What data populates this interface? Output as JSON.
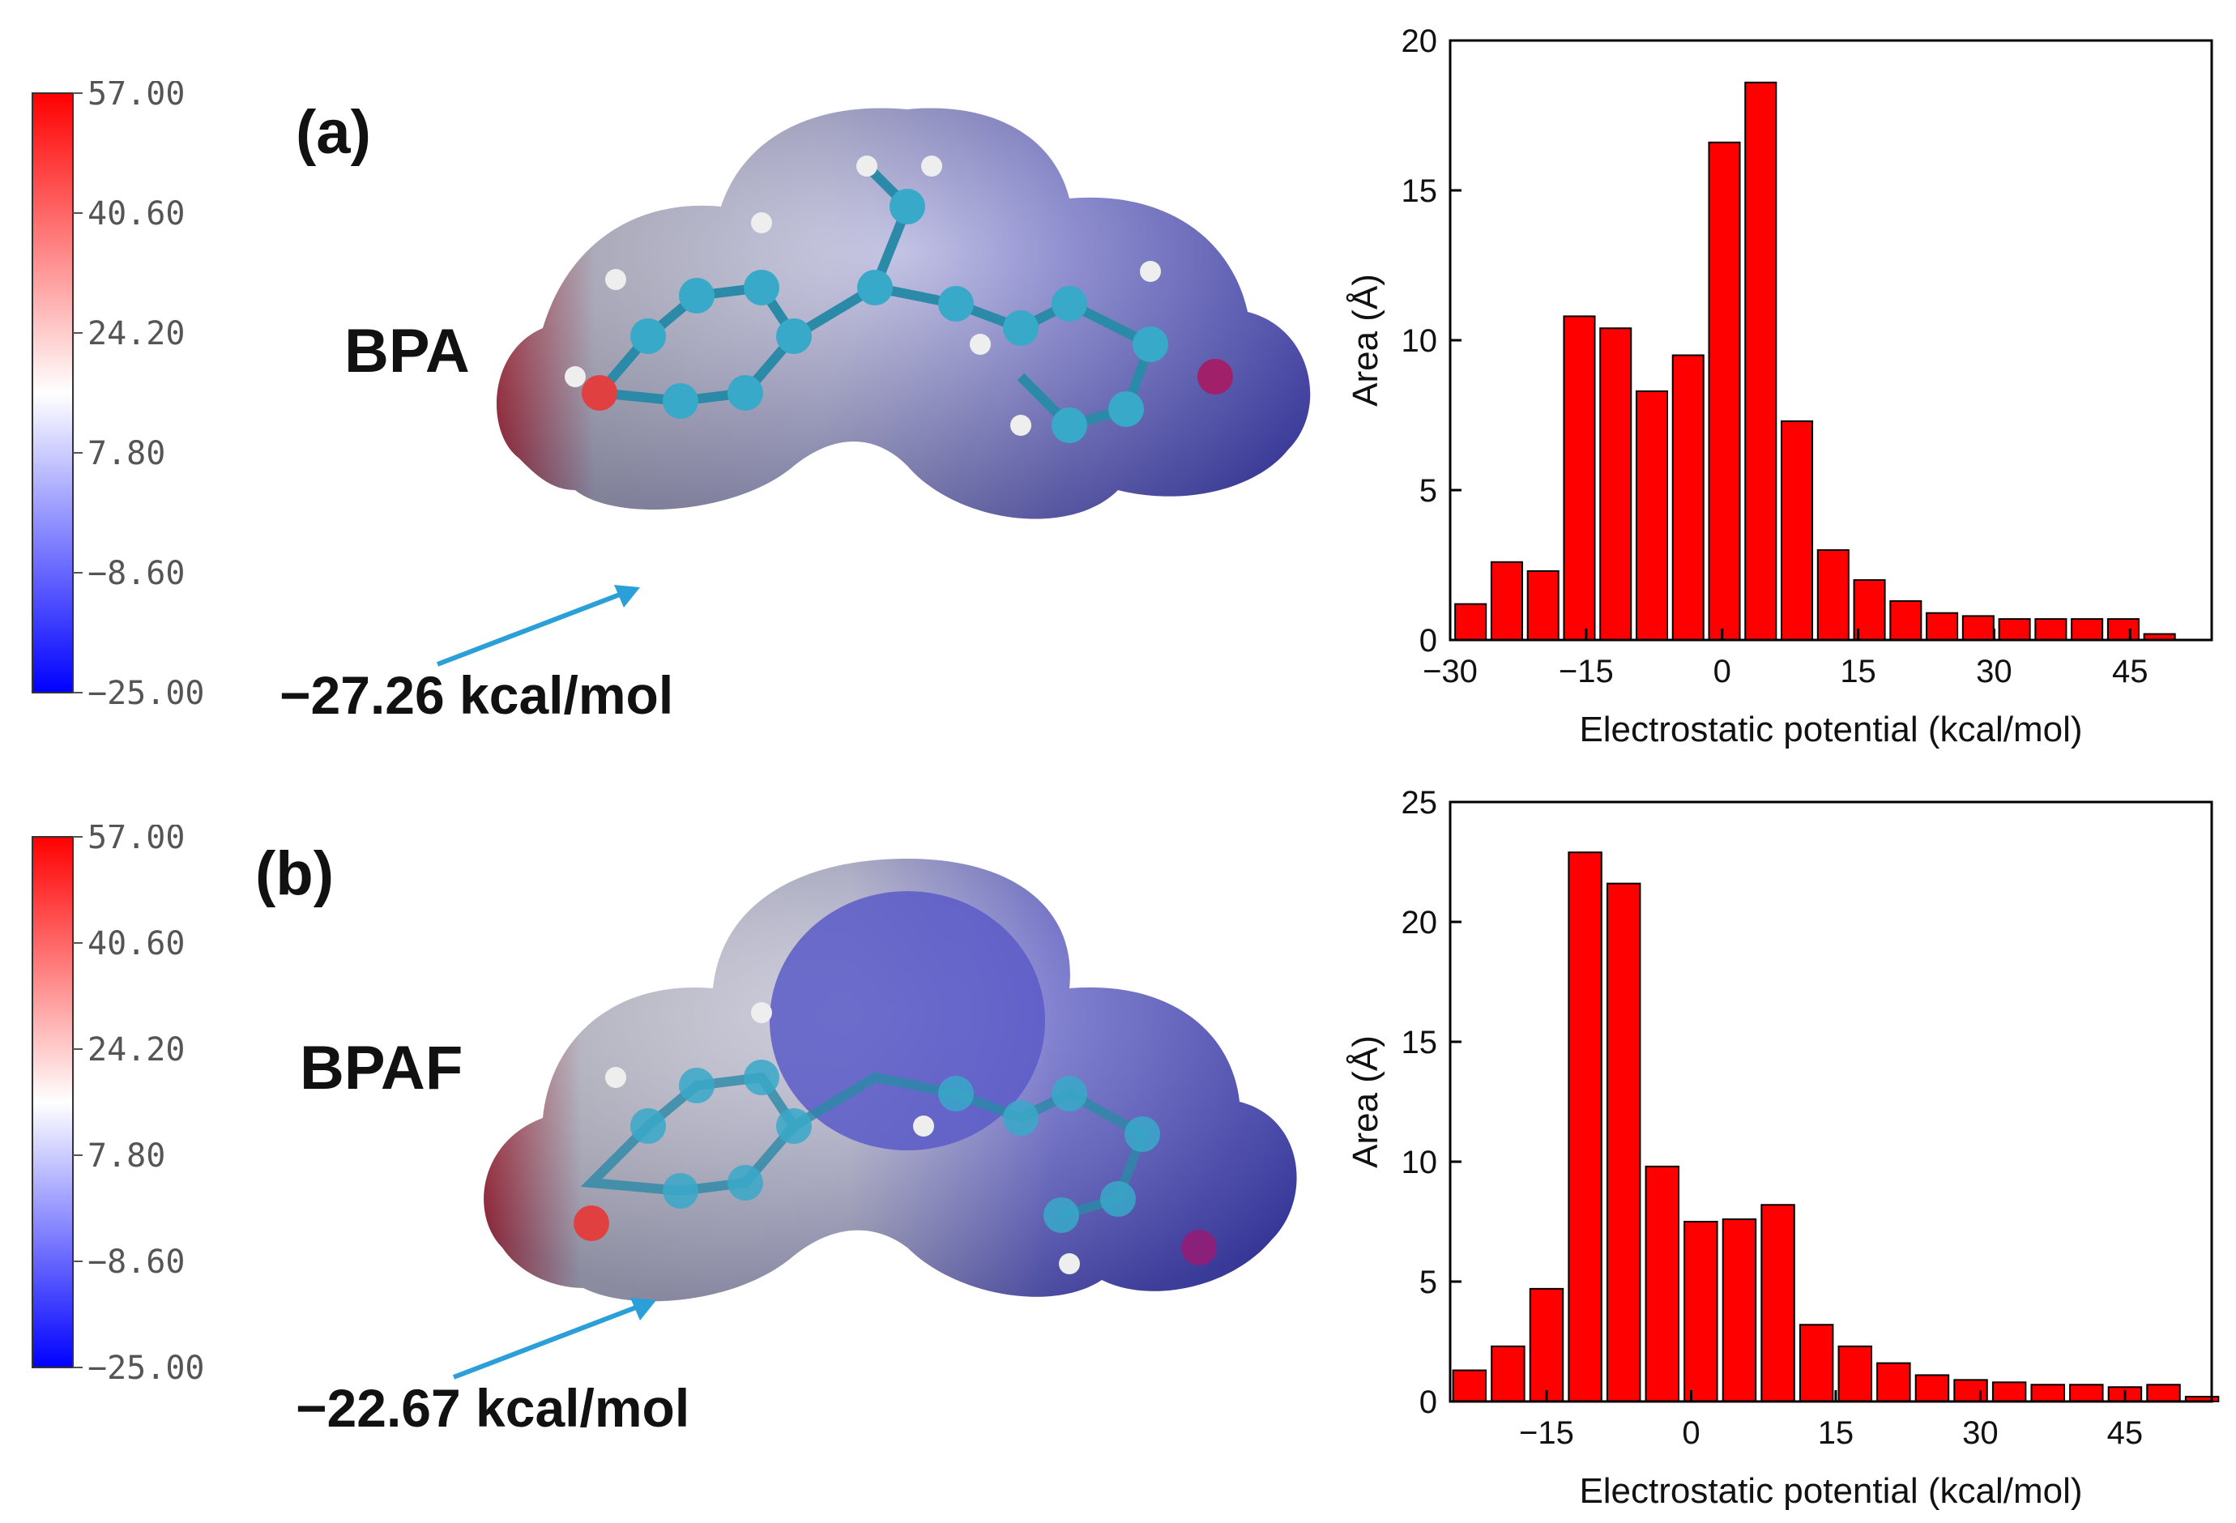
{
  "panels": [
    {
      "label": "(a)",
      "molecule": "BPA",
      "annotation": "−27.26 kcal/mol",
      "colorbar": {
        "ticks": [
          "57.00",
          "40.60",
          "24.20",
          "7.80",
          "−8.60",
          "−25.00"
        ],
        "colors": [
          "#ff0000",
          "#ffffff",
          "#0000ff"
        ]
      }
    },
    {
      "label": "(b)",
      "molecule": "BPAF",
      "annotation": "−22.67 kcal/mol",
      "colorbar": {
        "ticks": [
          "57.00",
          "40.60",
          "24.20",
          "7.80",
          "−8.60",
          "−25.00"
        ],
        "colors": [
          "#ff0000",
          "#ffffff",
          "#0000ff"
        ]
      }
    }
  ],
  "chart_data": [
    {
      "type": "bar",
      "xlabel": "Electrostatic potential (kcal/mol)",
      "ylabel": "Area (Å)",
      "xlim": [
        -30,
        54
      ],
      "ylim": [
        0,
        20
      ],
      "xticks": [
        -30,
        -15,
        0,
        15,
        30,
        45
      ],
      "yticks": [
        0,
        5,
        10,
        15,
        20
      ],
      "bar_width": 3.4,
      "bar_color": "#ff0000",
      "x": [
        -27.75,
        -23.75,
        -19.75,
        -15.75,
        -11.75,
        -7.75,
        -3.75,
        0.25,
        4.25,
        8.25,
        12.25,
        16.25,
        20.25,
        24.25,
        28.25,
        32.25,
        36.25,
        40.25,
        44.25,
        48.25,
        52.25
      ],
      "values": [
        1.2,
        2.6,
        2.3,
        10.8,
        10.4,
        8.3,
        9.5,
        16.6,
        18.6,
        7.3,
        3.0,
        2.0,
        1.3,
        0.9,
        0.8,
        0.7,
        0.7,
        0.7,
        0.7,
        0.2,
        0
      ]
    },
    {
      "type": "bar",
      "xlabel": "Electrostatic potential (kcal/mol)",
      "ylabel": "Area (Å)",
      "xlim": [
        -25,
        54
      ],
      "ylim": [
        0,
        25
      ],
      "xticks": [
        -15,
        0,
        15,
        30,
        45
      ],
      "yticks": [
        0,
        5,
        10,
        15,
        20,
        25
      ],
      "bar_width": 3.4,
      "bar_color": "#ff0000",
      "x": [
        -23,
        -19,
        -15,
        -11,
        -7,
        -3,
        1,
        5,
        9,
        13,
        17,
        21,
        25,
        29,
        33,
        37,
        41,
        45,
        49,
        53
      ],
      "values": [
        1.3,
        2.3,
        4.7,
        22.9,
        21.6,
        9.8,
        7.5,
        7.6,
        8.2,
        3.2,
        2.3,
        1.6,
        1.1,
        0.9,
        0.8,
        0.7,
        0.7,
        0.6,
        0.7,
        0.2
      ]
    }
  ]
}
